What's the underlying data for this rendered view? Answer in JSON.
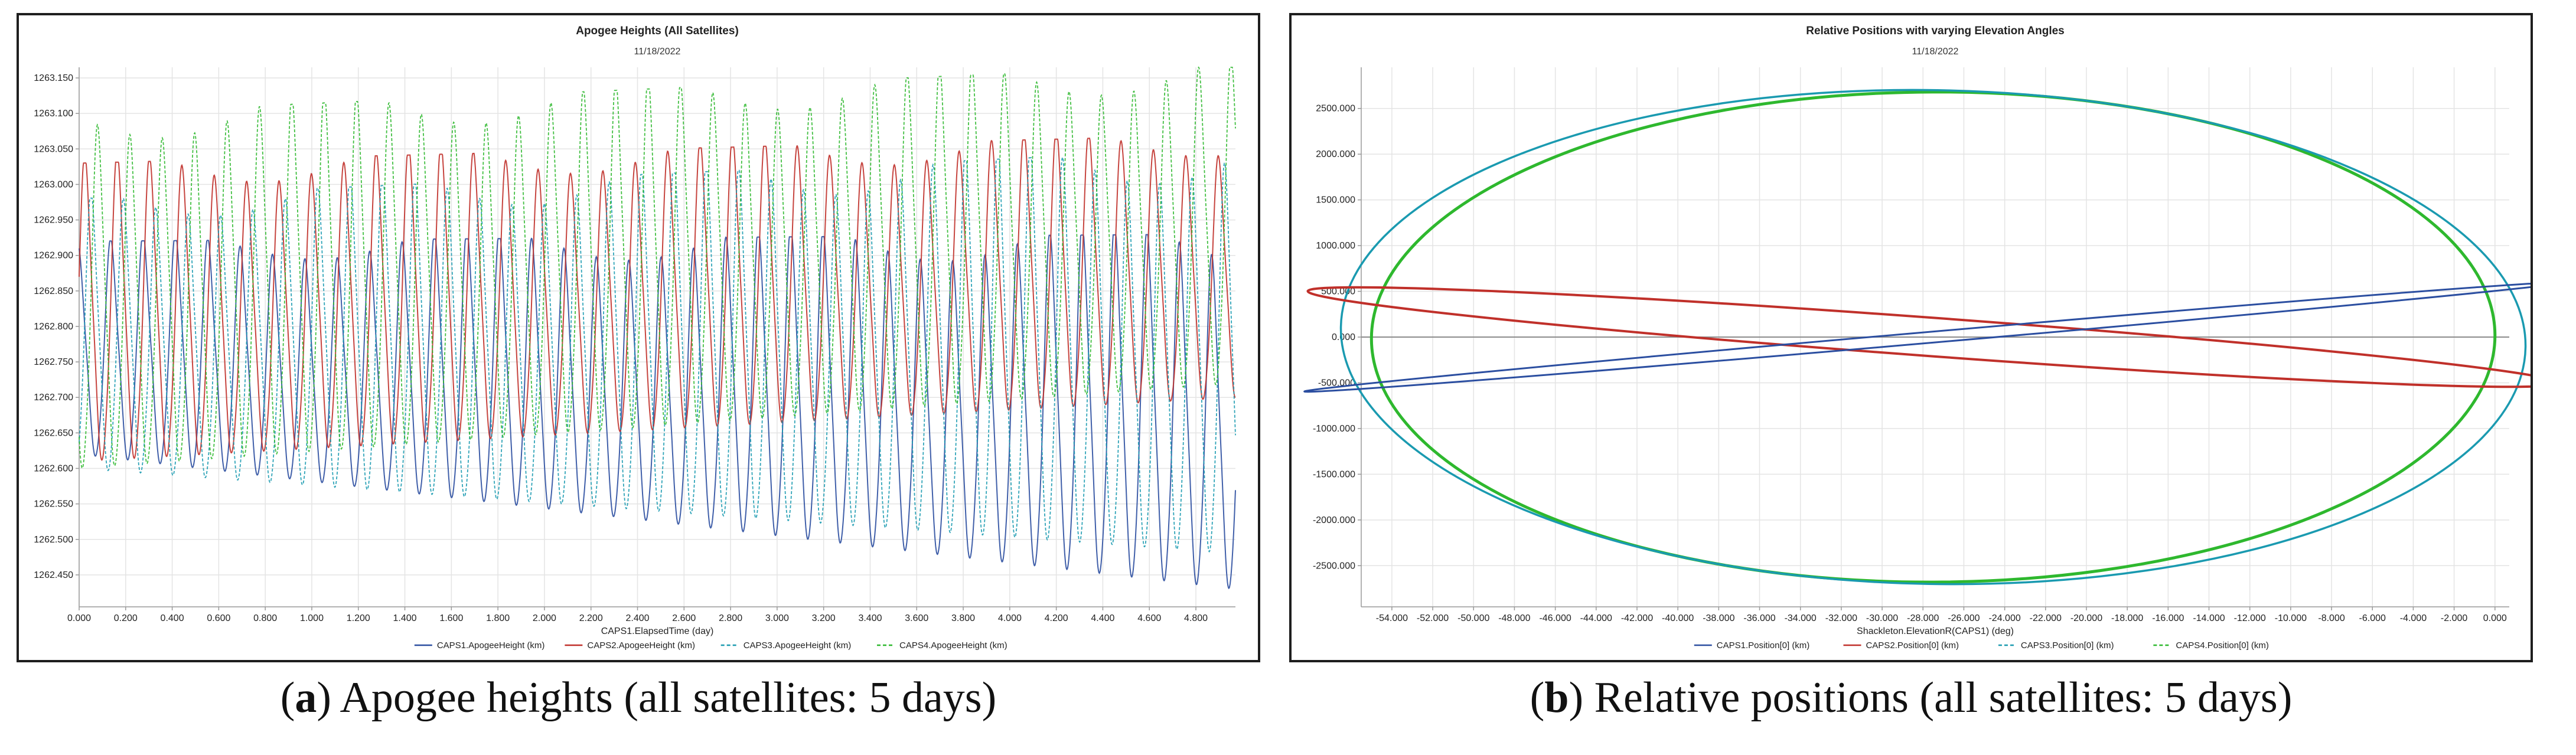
{
  "colors": {
    "caps1": "#2b4ea0",
    "caps2": "#c0302a",
    "caps3": "#1a9ab0",
    "caps4": "#2eb82e",
    "grid": "#e4e4e4",
    "zero": "#8c8c8c"
  },
  "panel_a": {
    "caption_letter": "a",
    "caption_text": ") Apogee heights (all satellites: 5 days)",
    "date": "11/18/2022"
  },
  "panel_b": {
    "caption_letter": "b",
    "caption_text": ") Relative positions (all satellites: 5 days)",
    "date": "11/18/2022"
  },
  "chart_data": [
    {
      "type": "line",
      "title": "Apogee Heights (All Satellites)",
      "subtitle": "11/18/2022",
      "xlabel": "CAPS1.ElapsedTime (day)",
      "ylabel": "",
      "xlim": [
        0,
        4.97
      ],
      "ylim": [
        1262.405,
        1263.165
      ],
      "x_ticks": [
        "0.000",
        "0.200",
        "0.400",
        "0.600",
        "0.800",
        "1.000",
        "1.200",
        "1.400",
        "1.600",
        "1.800",
        "2.000",
        "2.200",
        "2.400",
        "2.600",
        "2.800",
        "3.000",
        "3.200",
        "3.400",
        "3.600",
        "3.800",
        "4.000",
        "4.200",
        "4.400",
        "4.600",
        "4.800"
      ],
      "y_ticks": [
        "1262.450",
        "1262.500",
        "1262.550",
        "1262.600",
        "1262.650",
        "1262.700",
        "1262.750",
        "1262.800",
        "1262.850",
        "1262.900",
        "1262.950",
        "1263.000",
        "1263.050",
        "1263.100",
        "1263.150"
      ],
      "oscillation_period_day": 0.1392,
      "series": [
        {
          "name": "CAPS1.ApogeeHeight (km)",
          "style": "solid",
          "min_start": 1262.62,
          "min_end": 1262.43,
          "max_start": 1262.92,
          "max_end": 1262.93,
          "phase_day": 0.0
        },
        {
          "name": "CAPS2.ApogeeHeight (km)",
          "style": "solid",
          "min_start": 1262.61,
          "min_end": 1262.7,
          "max_start": 1263.03,
          "max_end": 1263.07,
          "phase_day": 0.028
        },
        {
          "name": "CAPS3.ApogeeHeight (km)",
          "style": "dashed",
          "min_start": 1262.6,
          "min_end": 1262.48,
          "max_start": 1262.98,
          "max_end": 1263.05,
          "phase_day": 0.055
        },
        {
          "name": "CAPS4.ApogeeHeight (km)",
          "style": "dashed",
          "min_start": 1262.6,
          "min_end": 1262.72,
          "max_start": 1263.1,
          "max_end": 1263.17,
          "phase_day": 0.083
        }
      ]
    },
    {
      "type": "line",
      "title": "Relative Positions with varying Elevation Angles",
      "subtitle": "11/18/2022",
      "xlabel": "Shackleton.ElevationR(CAPS1) (deg)",
      "ylabel": "",
      "xlim": [
        -55500,
        700
      ],
      "ylim": [
        -2950,
        2950
      ],
      "x_ticks": [
        "-54.000",
        "-52.000",
        "-50.000",
        "-48.000",
        "-46.000",
        "-44.000",
        "-42.000",
        "-40.000",
        "-38.000",
        "-36.000",
        "-34.000",
        "-32.000",
        "-30.000",
        "-28.000",
        "-26.000",
        "-24.000",
        "-22.000",
        "-20.000",
        "-18.000",
        "-16.000",
        "-14.000",
        "-12.000",
        "-10.000",
        "-8.000",
        "-6.000",
        "-4.000",
        "-2.000",
        "0.000"
      ],
      "y_ticks": [
        "-2500.000",
        "-2000.000",
        "-1500.000",
        "-1000.000",
        "-500.000",
        "0.000",
        "500.000",
        "1000.000",
        "1500.000",
        "2000.000",
        "2500.000"
      ],
      "series": [
        {
          "name": "CAPS1.Position[0] (km)",
          "style": "solid",
          "shape": "ellipse",
          "center": [
            -27500,
            0
          ],
          "semi_major": 30900,
          "semi_minor": 60,
          "angle_deg": -4.95
        },
        {
          "name": "CAPS2.Position[0] (km)",
          "style": "solid",
          "shape": "ellipse",
          "center": [
            -27500,
            0
          ],
          "semi_major": 30700,
          "semi_minor": 210,
          "angle_deg": 4.2
        },
        {
          "name": "CAPS3.Position[0] (km)",
          "style": "dashed",
          "shape": "ellipse",
          "center": [
            -27500,
            0
          ],
          "semi_major": 29000,
          "semi_minor": 2700,
          "angle_deg": 1.0
        },
        {
          "name": "CAPS4.Position[0] (km)",
          "style": "dashed",
          "shape": "ellipse",
          "center": [
            -27500,
            0
          ],
          "semi_major": 27500,
          "semi_minor": 2680,
          "angle_deg": -0.2
        }
      ]
    }
  ]
}
